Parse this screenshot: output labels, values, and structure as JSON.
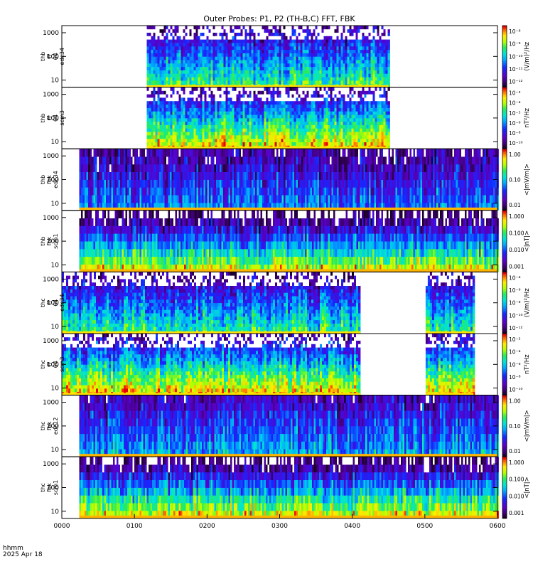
{
  "title": "Outer Probes: P1, P2 (TH-B,C) FFT, FBK",
  "time_label": "hhmm",
  "date_label": "2025 Apr 18",
  "chart_data": {
    "type": "heatmap",
    "x_ticks": [
      "0000",
      "0100",
      "0200",
      "0300",
      "0400",
      "0500",
      "0600"
    ],
    "panels": [
      {
        "ylabel": [
          "thb",
          "ff",
          "64",
          "edc34"
        ],
        "yticks": [
          "10",
          "100",
          "1000"
        ],
        "cbar_label": "(V/m)²/Hz",
        "cbar_ticks": [
          "10⁻⁸",
          "10⁻⁹",
          "10⁻¹⁰",
          "10⁻¹¹",
          "10⁻¹²"
        ],
        "data_range": [
          0.195,
          0.75
        ],
        "style": "fft_e"
      },
      {
        "ylabel": [
          "thb",
          "ff",
          "64",
          "scm3"
        ],
        "yticks": [
          "10",
          "100",
          "1000"
        ],
        "cbar_label": "nT²/Hz",
        "cbar_ticks": [
          "10⁻³",
          "10⁻⁴",
          "10⁻⁵",
          "10⁻⁶",
          "10⁻⁸",
          "10⁻¹⁰"
        ],
        "data_range": [
          0.195,
          0.75
        ],
        "style": "fft_b"
      },
      {
        "ylabel": [
          "thb",
          "fbk",
          "edc34"
        ],
        "yticks": [
          "10",
          "100",
          "1000"
        ],
        "cbar_label": "<|mV/m|>",
        "cbar_ticks": [
          "1.00",
          "0.10",
          "0.01"
        ],
        "data_range": [
          0.04,
          1.0
        ],
        "style": "fbk_e"
      },
      {
        "ylabel": [
          "thb",
          "fbk",
          "scm1"
        ],
        "yticks": [
          "10",
          "100",
          "1000"
        ],
        "cbar_label": "<|nT|>",
        "cbar_ticks": [
          "1.000",
          "0.100",
          "0.010",
          "0.001"
        ],
        "data_range": [
          0.04,
          1.0
        ],
        "style": "fbk_b"
      },
      {
        "ylabel": [
          "thc",
          "ff",
          "64",
          "edc34"
        ],
        "yticks": [
          "10",
          "100",
          "1000"
        ],
        "cbar_label": "(V/m)²/Hz",
        "cbar_ticks": [
          "10⁻⁴",
          "10⁻⁶",
          "10⁻⁸",
          "10⁻¹⁰",
          "10⁻¹²"
        ],
        "data_range": [
          0.0,
          0.685
        ],
        "data_range2": [
          0.835,
          0.945
        ],
        "style": "fft_e"
      },
      {
        "ylabel": [
          "thc",
          "ff",
          "64",
          "scm3"
        ],
        "yticks": [
          "10",
          "100",
          "1000"
        ],
        "cbar_label": "nT²/Hz",
        "cbar_ticks": [
          "10⁻²",
          "10⁻⁴",
          "10⁻⁶",
          "10⁻⁸",
          "10⁻¹⁰"
        ],
        "data_range": [
          0.0,
          0.685
        ],
        "data_range2": [
          0.835,
          0.945
        ],
        "style": "fft_b"
      },
      {
        "ylabel": [
          "thc",
          "fbk",
          "edc12"
        ],
        "yticks": [
          "10",
          "100",
          "1000"
        ],
        "cbar_label": "<|mV/m|>",
        "cbar_ticks": [
          "1.00",
          "0.10",
          "0.01"
        ],
        "data_range": [
          0.04,
          1.0
        ],
        "style": "fbk_e2"
      },
      {
        "ylabel": [
          "thc",
          "fbk",
          "scm1"
        ],
        "yticks": [
          "10",
          "100",
          "1000"
        ],
        "cbar_label": "<|nT|>",
        "cbar_ticks": [
          "1.000",
          "0.100",
          "0.010",
          "0.001"
        ],
        "data_range": [
          0.04,
          1.0
        ],
        "style": "fbk_b2"
      }
    ]
  }
}
